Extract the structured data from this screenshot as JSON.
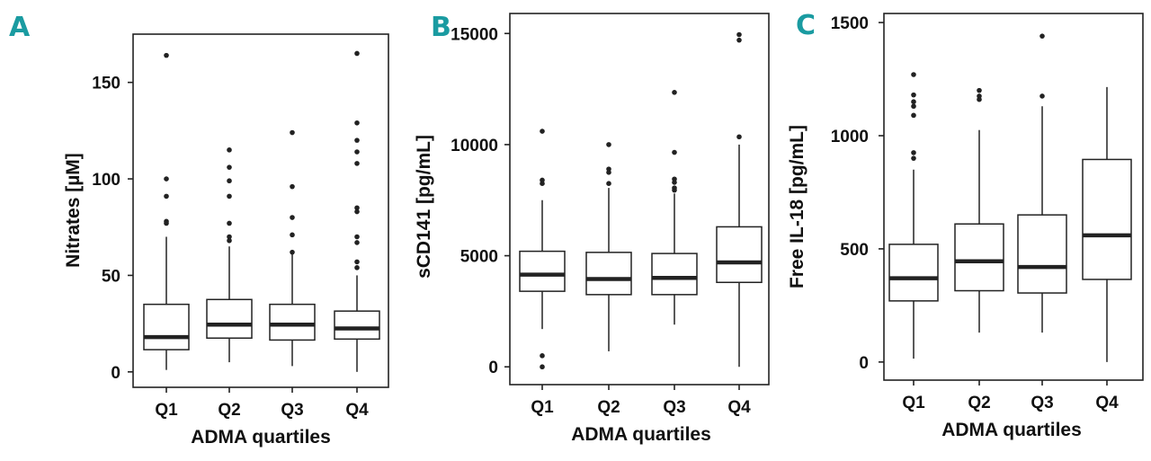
{
  "chart_data": [
    {
      "type": "boxplot",
      "panel_label": "A",
      "xlabel": "ADMA quartiles",
      "ylabel": "Nitrates [µM]",
      "ylim": [
        -8,
        175
      ],
      "yticks": [
        0,
        50,
        100,
        150
      ],
      "categories": [
        "Q1",
        "Q2",
        "Q3",
        "Q4"
      ],
      "boxes": [
        {
          "category": "Q1",
          "whisker_low": 1,
          "q1": 11.5,
          "median": 18,
          "q3": 35,
          "whisker_high": 70,
          "outliers": [
            77,
            78,
            91,
            100,
            164
          ]
        },
        {
          "category": "Q2",
          "whisker_low": 5,
          "q1": 17.5,
          "median": 24.5,
          "q3": 37.5,
          "whisker_high": 65,
          "outliers": [
            68,
            70,
            77,
            91,
            99,
            106,
            115
          ]
        },
        {
          "category": "Q3",
          "whisker_low": 3,
          "q1": 16.5,
          "median": 24.5,
          "q3": 35,
          "whisker_high": 61,
          "outliers": [
            62,
            71,
            80,
            96,
            124
          ]
        },
        {
          "category": "Q4",
          "whisker_low": 0,
          "q1": 17,
          "median": 22.5,
          "q3": 31.5,
          "whisker_high": 50,
          "outliers": [
            54,
            57,
            67,
            70,
            83,
            85,
            108,
            114,
            120,
            129,
            165
          ]
        }
      ]
    },
    {
      "type": "boxplot",
      "panel_label": "B",
      "xlabel": "ADMA quartiles",
      "ylabel": "sCD141 [pg/mL]",
      "ylim": [
        -800,
        15900
      ],
      "yticks": [
        0,
        5000,
        10000,
        15000
      ],
      "categories": [
        "Q1",
        "Q2",
        "Q3",
        "Q4"
      ],
      "boxes": [
        {
          "category": "Q1",
          "whisker_low": 1700,
          "q1": 3400,
          "median": 4150,
          "q3": 5200,
          "whisker_high": 7500,
          "outliers": [
            0,
            500,
            8250,
            8400,
            10600
          ]
        },
        {
          "category": "Q2",
          "whisker_low": 700,
          "q1": 3250,
          "median": 3950,
          "q3": 5150,
          "whisker_high": 8050,
          "outliers": [
            8250,
            8750,
            8900,
            10000
          ]
        },
        {
          "category": "Q3",
          "whisker_low": 1900,
          "q1": 3250,
          "median": 4000,
          "q3": 5100,
          "whisker_high": 7800,
          "outliers": [
            7950,
            8050,
            8300,
            8450,
            9650,
            12350
          ]
        },
        {
          "category": "Q4",
          "whisker_low": 0,
          "q1": 3800,
          "median": 4700,
          "q3": 6300,
          "whisker_high": 10000,
          "outliers": [
            10350,
            14700,
            14950
          ]
        }
      ]
    },
    {
      "type": "boxplot",
      "panel_label": "C",
      "xlabel": "ADMA quartiles",
      "ylabel": "Free IL-18 [pg/mL]",
      "ylim": [
        -80,
        1540
      ],
      "yticks": [
        0,
        500,
        1000,
        1500
      ],
      "categories": [
        "Q1",
        "Q2",
        "Q3",
        "Q4"
      ],
      "boxes": [
        {
          "category": "Q1",
          "whisker_low": 15,
          "q1": 270,
          "median": 370,
          "q3": 520,
          "whisker_high": 850,
          "outliers": [
            900,
            925,
            1090,
            1130,
            1150,
            1180,
            1270
          ]
        },
        {
          "category": "Q2",
          "whisker_low": 130,
          "q1": 315,
          "median": 445,
          "q3": 610,
          "whisker_high": 1025,
          "outliers": [
            1160,
            1175,
            1200
          ]
        },
        {
          "category": "Q3",
          "whisker_low": 130,
          "q1": 305,
          "median": 420,
          "q3": 650,
          "whisker_high": 1130,
          "outliers": [
            1175,
            1440
          ]
        },
        {
          "category": "Q4",
          "whisker_low": 0,
          "q1": 365,
          "median": 560,
          "q3": 895,
          "whisker_high": 1215,
          "outliers": []
        }
      ]
    }
  ]
}
